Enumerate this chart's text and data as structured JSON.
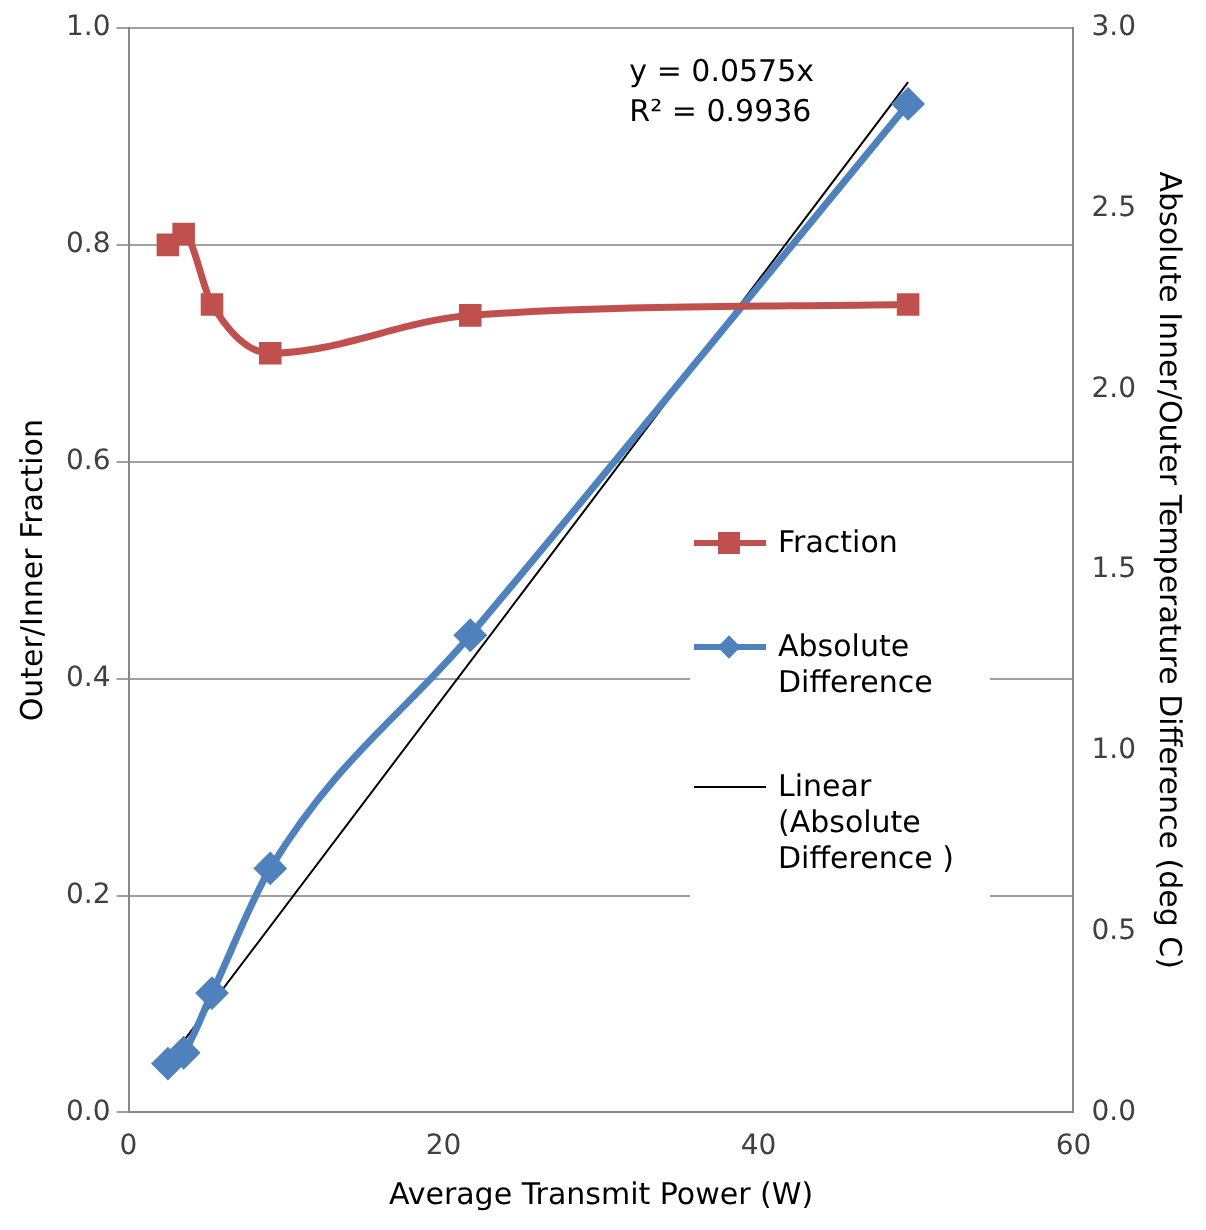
{
  "chart_data": {
    "type": "line",
    "xlabel": "Average Transmit Power (W)",
    "ylabel": "Outer/Inner Fraction",
    "y2label": "Absolute Inner/Outer Temperature Difference (deg C)",
    "xlim": [
      0,
      60
    ],
    "xticks": [
      0,
      20,
      40,
      60
    ],
    "ylim": [
      0,
      1
    ],
    "yticks": [
      {
        "value": 0,
        "label": "0.0"
      },
      {
        "value": 0.2,
        "label": "0.2"
      },
      {
        "value": 0.4,
        "label": "0.4"
      },
      {
        "value": 0.6,
        "label": "0.6"
      },
      {
        "value": 0.8,
        "label": "0.8"
      },
      {
        "value": 1,
        "label": "1.0"
      }
    ],
    "y2lim": [
      0,
      3
    ],
    "y2ticks": [
      {
        "value": 0,
        "label": "0.0"
      },
      {
        "value": 0.5,
        "label": "0.5"
      },
      {
        "value": 1,
        "label": "1.0"
      },
      {
        "value": 1.5,
        "label": "1.5"
      },
      {
        "value": 2,
        "label": "2.0"
      },
      {
        "value": 2.5,
        "label": "2.5"
      },
      {
        "value": 3,
        "label": "3.0"
      }
    ],
    "grid": "y",
    "legend": "right",
    "series": [
      {
        "name": "Fraction",
        "color": "#c0504d",
        "marker": "square",
        "x": [
          2.5,
          3.5,
          5.3,
          9,
          21.7,
          49.5
        ],
        "values": [
          0.8,
          0.81,
          0.745,
          0.7,
          0.735,
          0.745
        ]
      },
      {
        "name": "Absolute Difference",
        "color": "#4f81bd",
        "marker": "diamond",
        "axis": "y2",
        "x": [
          2.5,
          3.5,
          5.3,
          9,
          21.7,
          49.5
        ],
        "values": [
          0.135,
          0.165,
          0.33,
          0.675,
          1.32,
          2.79
        ]
      },
      {
        "name": "Linear (Absolute Difference )",
        "color": "#000000",
        "marker": "none",
        "axis": "y2",
        "x": [
          2.5,
          49.5
        ],
        "values": [
          0.14,
          2.85
        ]
      }
    ],
    "annotations": [
      "y = 0.0575x",
      "R² = 0.9936"
    ]
  }
}
